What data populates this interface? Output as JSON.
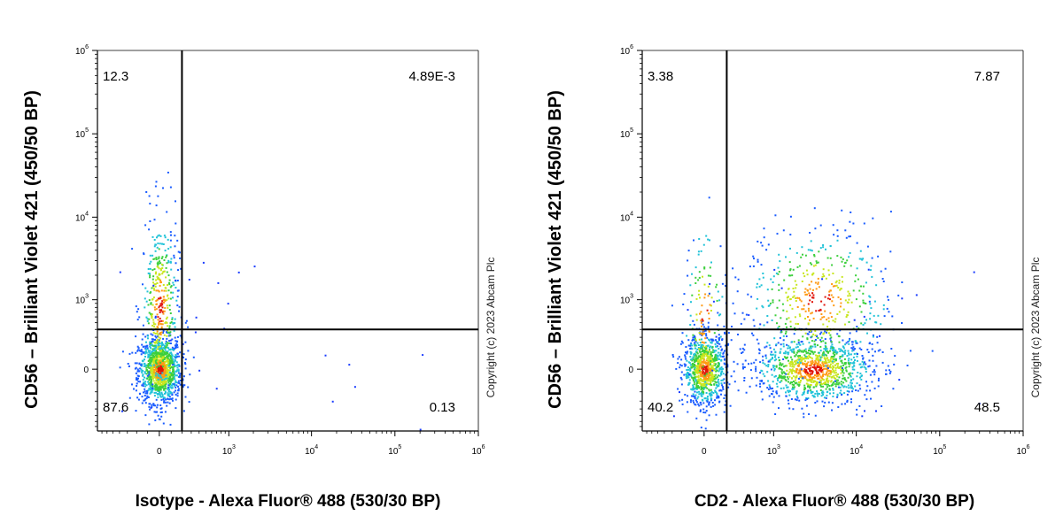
{
  "copyright": "Copyright (c) 2023 Abcam Plc",
  "chart_data": [
    {
      "type": "scatter",
      "subtype": "flow-cytometry-density-dot-plot",
      "xlabel": "Isotype - Alexa Fluor® 488 (530/30 BP)",
      "ylabel": "CD56 – Brilliant Violet 421 (450/50 BP)",
      "x_scale": "biexponential",
      "y_scale": "biexponential",
      "x_ticks": [
        0,
        1000,
        10000,
        100000,
        1000000
      ],
      "y_ticks": [
        0,
        1000,
        10000,
        100000,
        1000000
      ],
      "x_tick_labels": [
        {
          "text": "0",
          "exp": ""
        },
        {
          "text": "10",
          "exp": "3"
        },
        {
          "text": "10",
          "exp": "4"
        },
        {
          "text": "10",
          "exp": "5"
        },
        {
          "text": "10",
          "exp": "6"
        }
      ],
      "y_tick_labels": [
        {
          "text": "0",
          "exp": ""
        },
        {
          "text": "10",
          "exp": "3"
        },
        {
          "text": "10",
          "exp": "4"
        },
        {
          "text": "10",
          "exp": "5"
        },
        {
          "text": "10",
          "exp": "6"
        }
      ],
      "gate_x": 200,
      "gate_y": 400,
      "quadrants": {
        "upper_left": "12.3",
        "upper_right": "4.89E-3",
        "lower_left": "87.6",
        "lower_right": "0.13"
      },
      "populations": [
        {
          "x": 0,
          "y": 0,
          "sx": 0.08,
          "sy": 0.12,
          "n": 1100,
          "name": ""
        },
        {
          "x": 0,
          "y": 800,
          "sx": 0.07,
          "sy": 0.35,
          "n": 420,
          "name": ""
        }
      ]
    },
    {
      "type": "scatter",
      "subtype": "flow-cytometry-density-dot-plot",
      "xlabel": "CD2 - Alexa Fluor® 488 (530/30 BP)",
      "ylabel": "CD56 – Brilliant Violet 421 (450/50 BP)",
      "x_scale": "biexponential",
      "y_scale": "biexponential",
      "x_ticks": [
        0,
        1000,
        10000,
        100000,
        1000000
      ],
      "y_ticks": [
        0,
        1000,
        10000,
        100000,
        1000000
      ],
      "x_tick_labels": [
        {
          "text": "0",
          "exp": ""
        },
        {
          "text": "10",
          "exp": "3"
        },
        {
          "text": "10",
          "exp": "4"
        },
        {
          "text": "10",
          "exp": "5"
        },
        {
          "text": "10",
          "exp": "6"
        }
      ],
      "y_tick_labels": [
        {
          "text": "0",
          "exp": ""
        },
        {
          "text": "10",
          "exp": "3"
        },
        {
          "text": "10",
          "exp": "4"
        },
        {
          "text": "10",
          "exp": "5"
        },
        {
          "text": "10",
          "exp": "6"
        }
      ],
      "gate_x": 200,
      "gate_y": 400,
      "quadrants": {
        "upper_left": "3.38",
        "upper_right": "7.87",
        "lower_left": "40.2",
        "lower_right": "48.5"
      },
      "populations": [
        {
          "x": 0,
          "y": 0,
          "sx": 0.08,
          "sy": 0.13,
          "n": 850,
          "name": ""
        },
        {
          "x": 0,
          "y": 600,
          "sx": 0.08,
          "sy": 0.35,
          "n": 150,
          "name": ""
        },
        {
          "x": 3000,
          "y": 0,
          "sx": 0.22,
          "sy": 0.12,
          "n": 1050,
          "name": ""
        },
        {
          "x": 3500,
          "y": 1000,
          "sx": 0.28,
          "sy": 0.28,
          "n": 500,
          "name": ""
        }
      ]
    }
  ]
}
